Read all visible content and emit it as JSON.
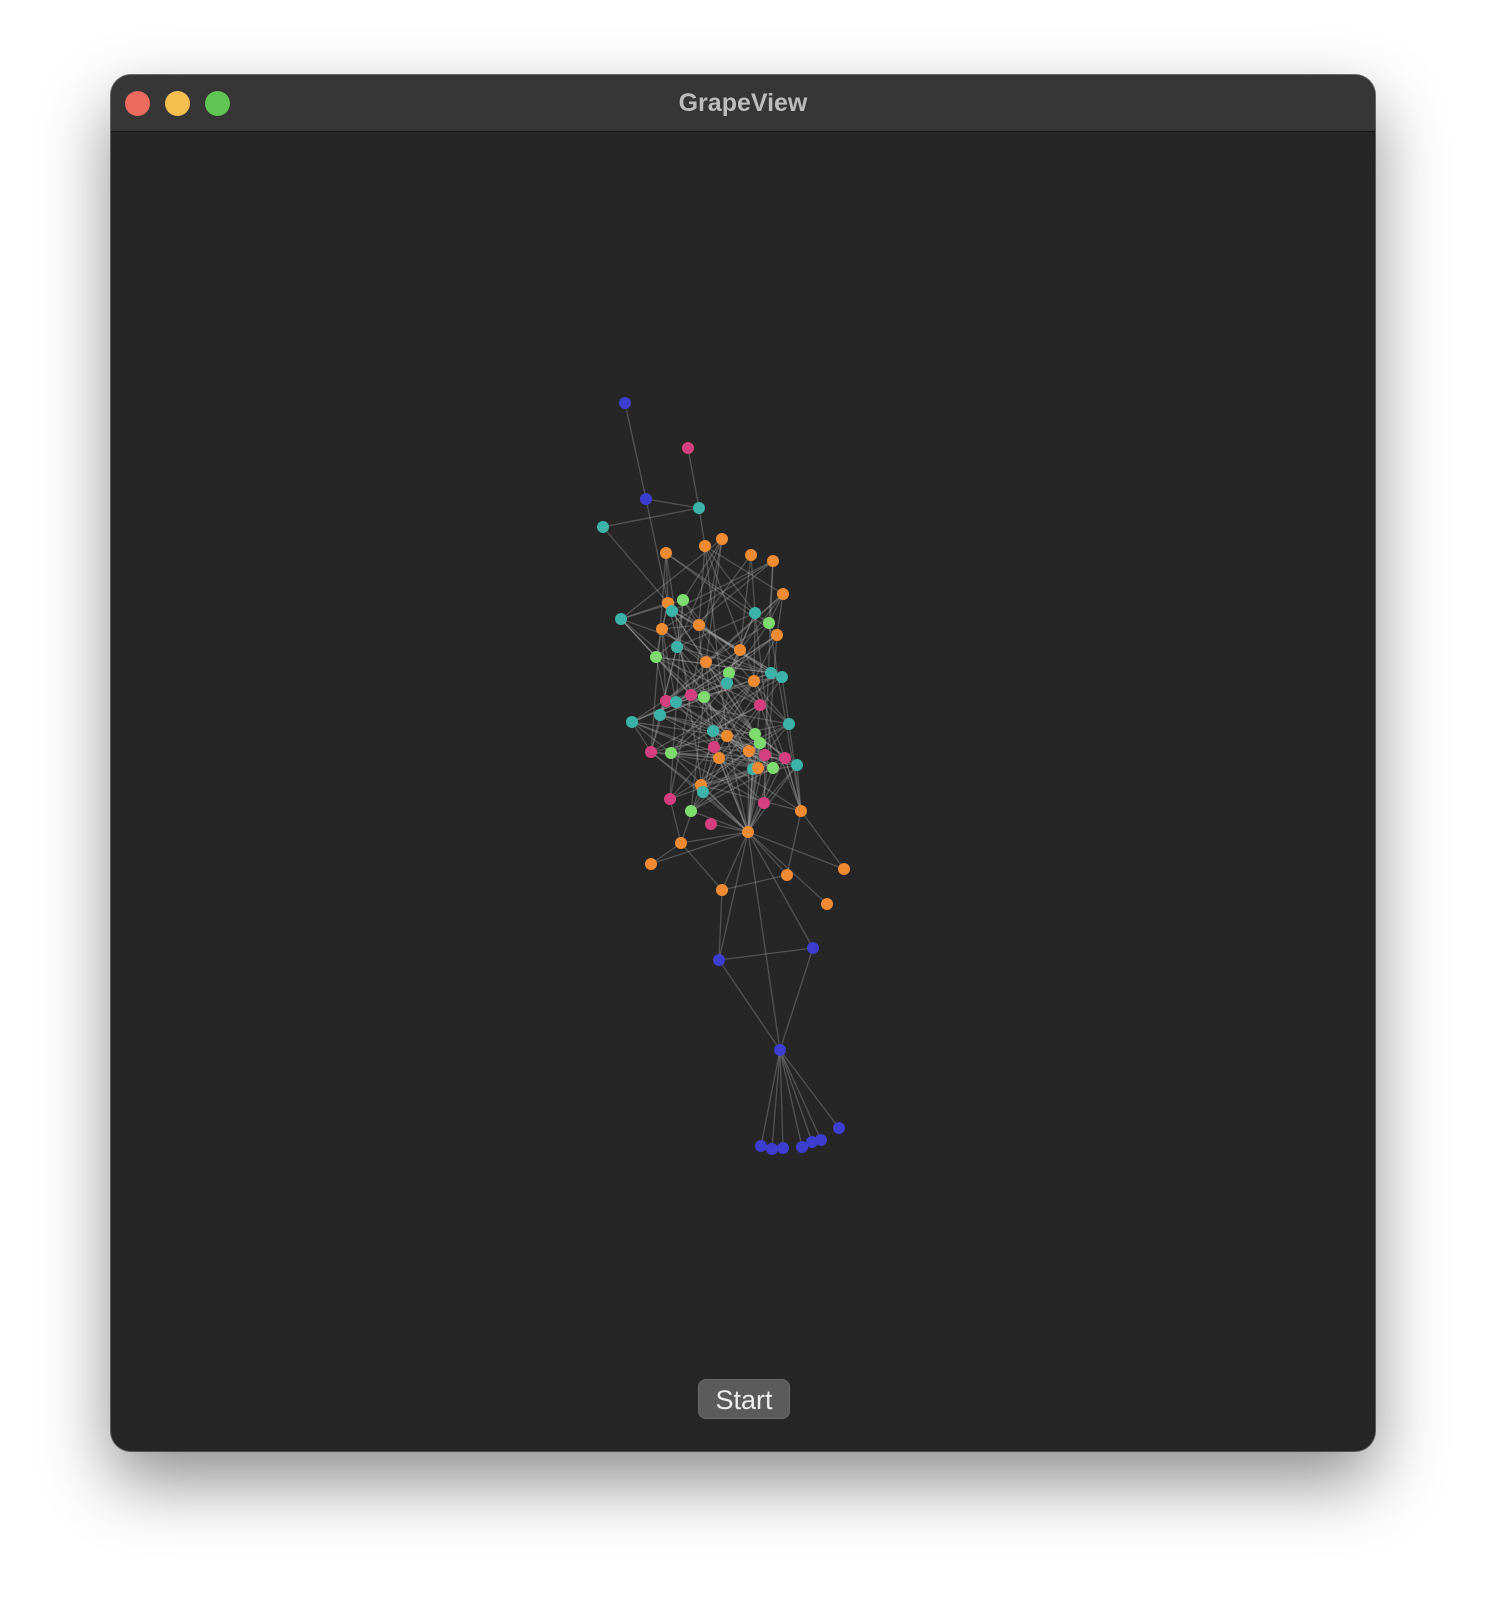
{
  "window": {
    "title": "GrapeView"
  },
  "toolbar": {
    "start_label": "Start"
  },
  "colors": {
    "window_bg": "#262626",
    "titlebar_bg": "#363636",
    "edge": "#aaaaaa",
    "close": "#ed6a5e",
    "minimize": "#f5bf4f",
    "zoom": "#61c554",
    "node_colors": [
      "#3d3dcf",
      "#d4407f",
      "#3cb3a8",
      "#f08b32",
      "#7ddc6d"
    ]
  },
  "icons": {
    "close": "close-circle-icon",
    "minimize": "minimize-circle-icon",
    "zoom": "zoom-circle-icon"
  }
}
